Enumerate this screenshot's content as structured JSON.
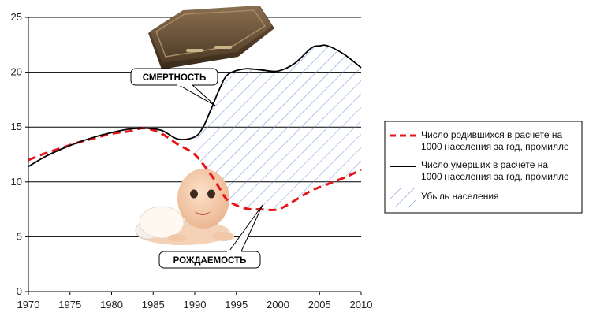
{
  "chart_data": {
    "type": "line",
    "title": "",
    "xlabel": "",
    "ylabel": "",
    "xlim": [
      1970,
      2010
    ],
    "ylim": [
      0,
      25
    ],
    "x_ticks": [
      1970,
      1975,
      1980,
      1985,
      1990,
      1995,
      2000,
      2005,
      2010
    ],
    "y_ticks": [
      0,
      5,
      10,
      15,
      20,
      25
    ],
    "grid": "horizontal",
    "legend_position": "right",
    "series": [
      {
        "name": "Число родившихся в расчете на 1000 населения за год, промилле",
        "color": "#e8141a",
        "style": "dashed",
        "x": [
          1970,
          1972,
          1974,
          1976,
          1978,
          1980,
          1982,
          1984,
          1986,
          1988,
          1990,
          1992,
          1993,
          1994,
          1996,
          1998,
          2000,
          2002,
          2004,
          2006,
          2008,
          2010
        ],
        "values": [
          12.0,
          12.6,
          13.1,
          13.6,
          14.0,
          14.4,
          14.6,
          14.9,
          14.4,
          13.4,
          12.5,
          10.6,
          9.4,
          8.3,
          7.6,
          7.5,
          7.5,
          8.3,
          9.2,
          9.8,
          10.4,
          11.1
        ]
      },
      {
        "name": "Число умерших в расчете на 1000 населения за год, промилле",
        "color": "#000000",
        "style": "solid",
        "x": [
          1970,
          1972,
          1974,
          1976,
          1978,
          1980,
          1982,
          1984,
          1986,
          1988,
          1990,
          1991,
          1992,
          1993,
          1994,
          1996,
          1998,
          2000,
          2002,
          2004,
          2005,
          2006,
          2008,
          2010
        ],
        "values": [
          11.4,
          12.3,
          13.0,
          13.6,
          14.1,
          14.5,
          14.8,
          14.9,
          14.7,
          13.9,
          14.1,
          15.0,
          16.7,
          18.5,
          19.8,
          20.3,
          20.2,
          20.1,
          20.8,
          22.2,
          22.4,
          22.4,
          21.6,
          20.4
        ]
      }
    ],
    "area_label": "Убыль населения",
    "annotations": [
      "СМЕРТНОСТЬ",
      "РОЖДАЕМОСТЬ"
    ]
  },
  "legend": {
    "births_label_1": "Число родившихся в расчете на",
    "births_label_2": "1000 населения за год, промилле",
    "deaths_label_1": "Число умерших в расчете на",
    "deaths_label_2": "1000 населения за год, промилле",
    "area_label": "Убыль населения"
  },
  "callouts": {
    "mortality": "СМЕРТНОСТЬ",
    "birth_rate": "РОЖДАЕМОСТЬ"
  },
  "images": {
    "coffin": "coffin-icon",
    "baby": "baby-photo"
  }
}
